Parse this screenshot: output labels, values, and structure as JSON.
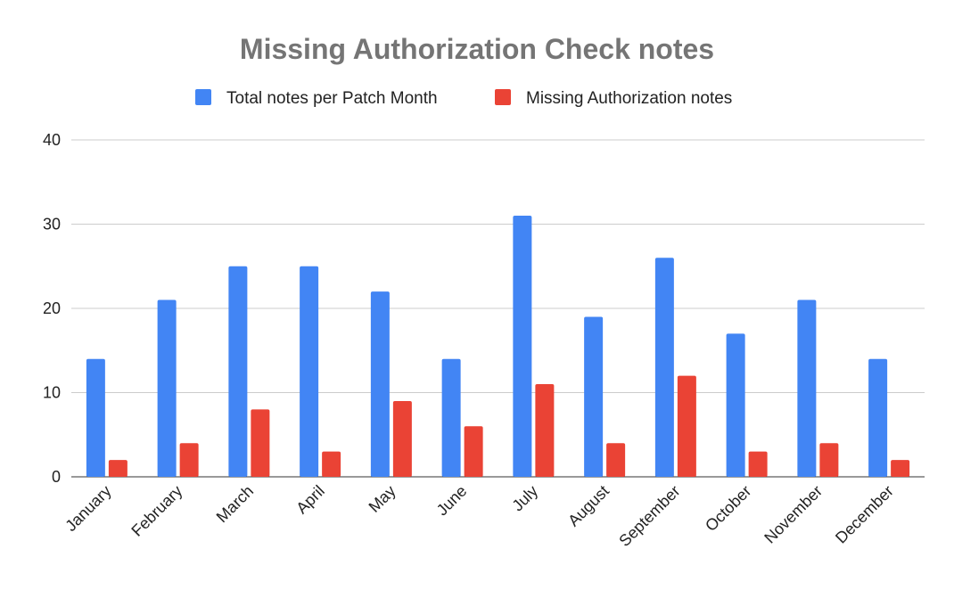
{
  "chart_data": {
    "type": "bar",
    "title": "Missing Authorization Check notes",
    "xlabel": "",
    "ylabel": "",
    "ylim": [
      0,
      40
    ],
    "yticks": [
      0,
      10,
      20,
      30,
      40
    ],
    "grid": true,
    "legend_position": "top",
    "categories": [
      "January",
      "February",
      "March",
      "April",
      "May",
      "June",
      "July",
      "August",
      "September",
      "October",
      "November",
      "December"
    ],
    "series": [
      {
        "name": "Total notes per Patch Month",
        "color": "#4285f4",
        "values": [
          14,
          21,
          25,
          25,
          22,
          14,
          31,
          19,
          26,
          17,
          21,
          14
        ]
      },
      {
        "name": "Missing Authorization notes",
        "color": "#ea4335",
        "values": [
          2,
          4,
          8,
          3,
          9,
          6,
          11,
          4,
          12,
          3,
          4,
          2
        ]
      }
    ]
  }
}
